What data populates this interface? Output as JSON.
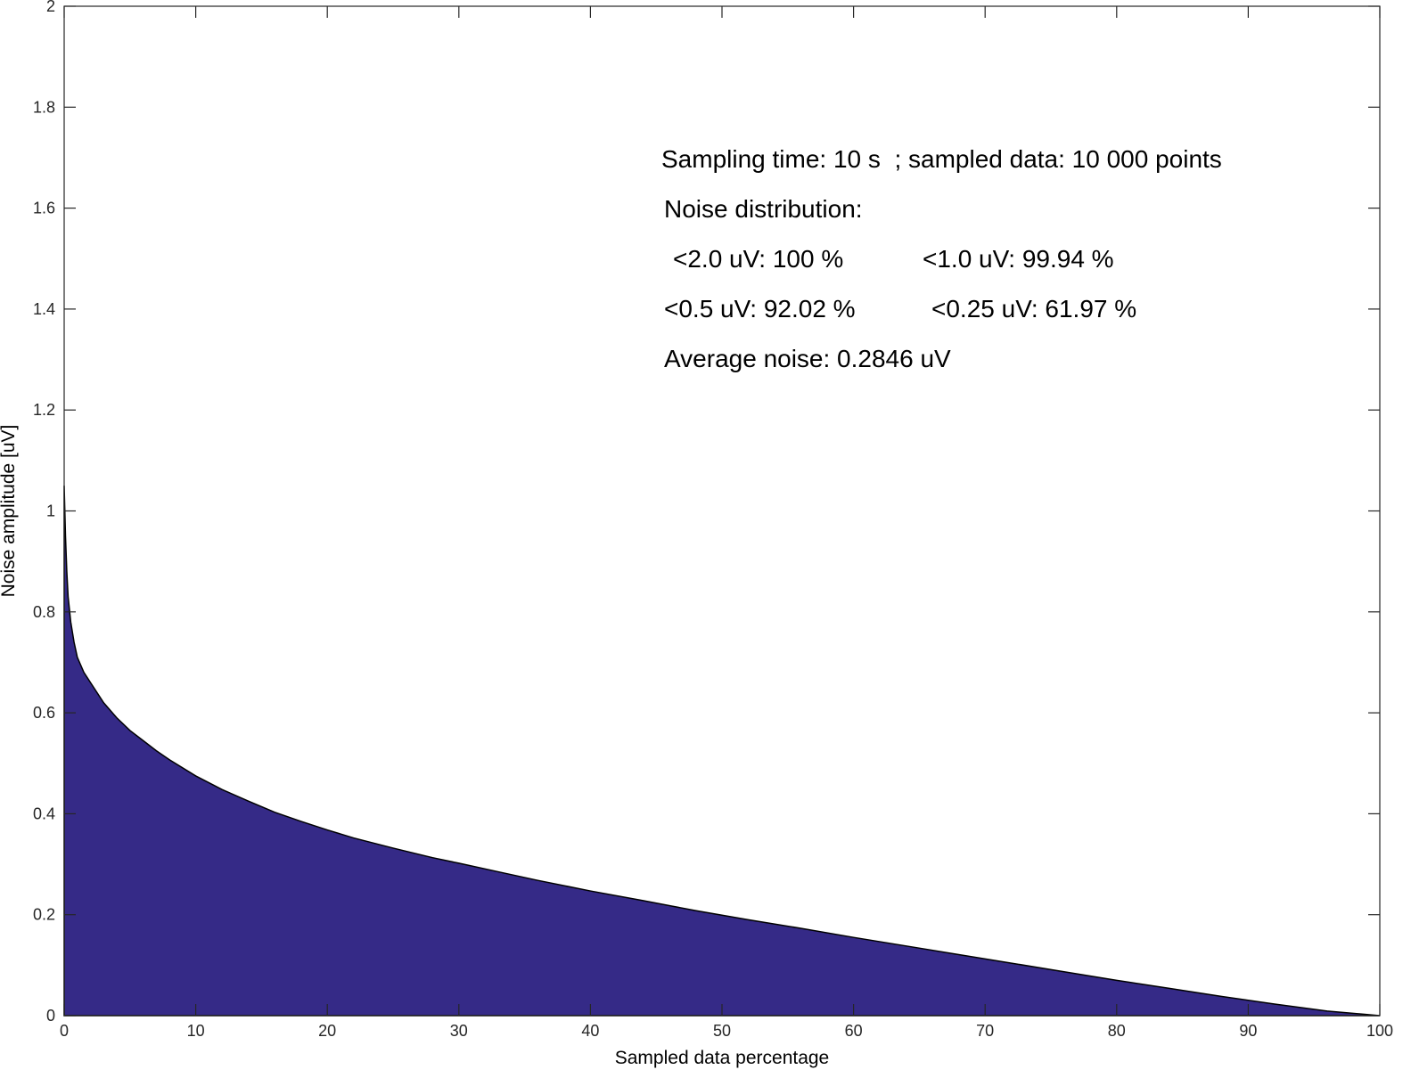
{
  "chart_data": {
    "type": "area",
    "xlabel": "Sampled data percentage",
    "ylabel": "Noise amplitude [uV]",
    "xlim": [
      0,
      100
    ],
    "ylim": [
      0,
      2
    ],
    "xticks": [
      0,
      10,
      20,
      30,
      40,
      50,
      60,
      70,
      80,
      90,
      100
    ],
    "yticks": [
      0,
      0.2,
      0.4,
      0.6,
      0.8,
      1,
      1.2,
      1.4,
      1.6,
      1.8,
      2
    ],
    "ytick_labels": [
      "0",
      "0.2",
      "0.4",
      "0.6",
      "0.8",
      "1",
      "1.2",
      "1.4",
      "1.6",
      "1.8",
      "2"
    ],
    "grid": false,
    "colors": {
      "fill": "#352a87",
      "edge": "#000000"
    },
    "series": [
      {
        "x": [
          0,
          0.1,
          0.2,
          0.3,
          0.5,
          0.75,
          1,
          1.5,
          2,
          3,
          4,
          5,
          6,
          7,
          8,
          10,
          12,
          14,
          16,
          18,
          20,
          22,
          25,
          28,
          30,
          33,
          36,
          40,
          44,
          48,
          52,
          56,
          60,
          64,
          68,
          72,
          76,
          80,
          84,
          88,
          92,
          96,
          100
        ],
        "values": [
          1.05,
          0.95,
          0.88,
          0.83,
          0.78,
          0.74,
          0.71,
          0.68,
          0.66,
          0.62,
          0.59,
          0.565,
          0.545,
          0.525,
          0.507,
          0.475,
          0.448,
          0.425,
          0.403,
          0.385,
          0.368,
          0.352,
          0.332,
          0.313,
          0.302,
          0.285,
          0.268,
          0.247,
          0.228,
          0.208,
          0.19,
          0.173,
          0.155,
          0.138,
          0.121,
          0.104,
          0.087,
          0.07,
          0.054,
          0.038,
          0.023,
          0.009,
          0.0
        ]
      }
    ],
    "annotations": [
      "Sampling time: 10 s  ; sampled data: 10 000 points",
      "Noise distribution:",
      "<2.0 uV: 100 %",
      "<1.0 uV: 99.94 %",
      "<0.5 uV: 92.02 %",
      "<0.25 uV: 61.97 %",
      "Average noise: 0.2846 uV"
    ]
  }
}
